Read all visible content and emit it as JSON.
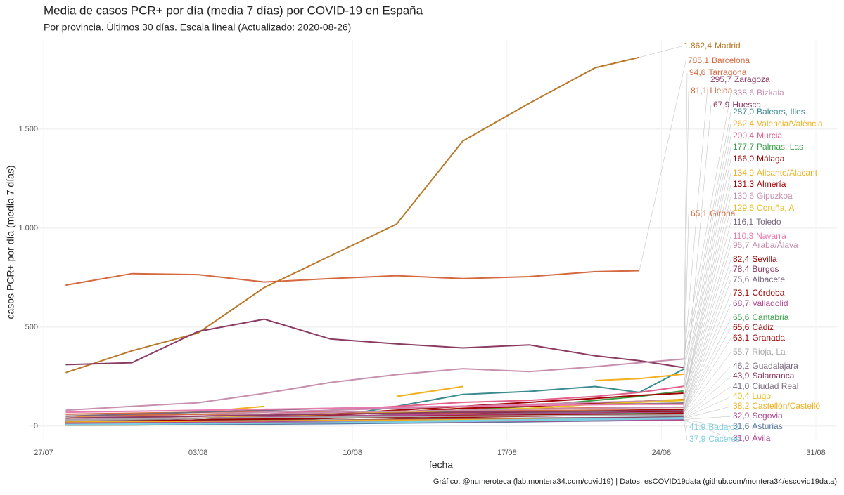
{
  "chart_data": {
    "type": "line",
    "title": "Media de casos PCR+ por día (media 7 días) por COVID-19 en España",
    "subtitle": "Por provincia. Últimos 30 días. Escala lineal  (Actualizado: 2020-08-26)",
    "x_label": "fecha",
    "y_label": "casos PCR+ por día (media 7 días)",
    "caption": "Gráfico: @numeroteca (lab.montera34.com/covid19) | Datos: esCOVID19data (github.com/montera34/escovid19data)",
    "x": [
      "28/07",
      "31/07",
      "03/08",
      "06/08",
      "09/08",
      "12/08",
      "15/08",
      "18/08",
      "21/08",
      "23/08",
      "25/08"
    ],
    "xlim": [
      "27/07",
      "31/08"
    ],
    "xticks": [
      "27/07",
      "03/08",
      "10/08",
      "17/08",
      "24/08",
      "31/08"
    ],
    "ylim": [
      -75,
      1950
    ],
    "yticks": [
      0,
      500,
      {
        "value": 1000,
        "label": "1.000"
      },
      {
        "value": 1500,
        "label": "1.500"
      }
    ],
    "grid": true,
    "series": [
      {
        "name": "Madrid",
        "color": "#b87a2a",
        "label": "1.862,4",
        "values": [
          270,
          380,
          470,
          700,
          860,
          1020,
          1440,
          1630,
          1810,
          1862.4,
          null
        ]
      },
      {
        "name": "Barcelona",
        "color": "#d4693f",
        "label": "785,1",
        "values": [
          712,
          770,
          765,
          728,
          745,
          760,
          745,
          755,
          780,
          785.1,
          null
        ]
      },
      {
        "name": "Tarragona",
        "color": "#d4693f",
        "label": "94,6",
        "values": [
          40,
          45,
          50,
          55,
          60,
          70,
          80,
          88,
          92,
          94,
          94.6
        ]
      },
      {
        "name": "Zaragoza",
        "color": "#8b3a62",
        "label": "295,7",
        "values": [
          310,
          320,
          478,
          540,
          440,
          415,
          395,
          410,
          355,
          330,
          295.7
        ]
      },
      {
        "name": "Bizkaia",
        "color": "#c78fae",
        "label": "338,6",
        "values": [
          80,
          100,
          118,
          165,
          220,
          260,
          290,
          275,
          300,
          320,
          338.6
        ]
      },
      {
        "name": "Lleida",
        "color": "#d4693f",
        "label": "81,1",
        "values": [
          60,
          65,
          70,
          75,
          72,
          70,
          75,
          78,
          80,
          81,
          81.1
        ]
      },
      {
        "name": "Huesca",
        "color": "#8b3a62",
        "label": "67,9",
        "values": [
          20,
          25,
          30,
          40,
          50,
          55,
          60,
          62,
          65,
          67,
          67.9
        ]
      },
      {
        "name": "Balears, Illes",
        "color": "#3a8a8f",
        "label": "287,0",
        "values": [
          30,
          28,
          25,
          35,
          45,
          100,
          160,
          175,
          200,
          170,
          287.0
        ]
      },
      {
        "name": "Valencia/València",
        "color": "#f2b01e",
        "label": "262,4",
        "values": [
          40,
          60,
          70,
          100,
          null,
          150,
          200,
          null,
          230,
          240,
          262.4
        ]
      },
      {
        "name": "Murcia",
        "color": "#e0608a",
        "label": "200,4",
        "values": [
          40,
          45,
          50,
          60,
          80,
          100,
          120,
          130,
          150,
          170,
          200.4
        ]
      },
      {
        "name": "Palmas, Las",
        "color": "#3aa04a",
        "label": "177,7",
        "values": [
          10,
          15,
          20,
          30,
          40,
          60,
          80,
          100,
          130,
          150,
          177.7
        ]
      },
      {
        "name": "Málaga",
        "color": "#a00000",
        "label": "166,0",
        "values": [
          15,
          20,
          30,
          45,
          60,
          80,
          100,
          120,
          140,
          155,
          166.0
        ]
      },
      {
        "name": "Alicante/Alacant",
        "color": "#f2b01e",
        "label": "134,9",
        "values": [
          30,
          35,
          40,
          50,
          60,
          70,
          90,
          100,
          115,
          125,
          134.9
        ]
      },
      {
        "name": "Almería",
        "color": "#a00000",
        "label": "131,3",
        "values": [
          20,
          25,
          30,
          40,
          55,
          70,
          90,
          100,
          115,
          125,
          131.3
        ]
      },
      {
        "name": "Gipuzkoa",
        "color": "#c78fae",
        "label": "130,6",
        "values": [
          40,
          50,
          60,
          70,
          80,
          90,
          100,
          110,
          120,
          125,
          130.6
        ]
      },
      {
        "name": "Coruña, A",
        "color": "#e8c020",
        "label": "129,6",
        "values": [
          30,
          35,
          40,
          50,
          60,
          70,
          80,
          90,
          110,
          120,
          129.6
        ]
      },
      {
        "name": "Girona",
        "color": "#d4693f",
        "label": "65,1",
        "values": [
          50,
          55,
          60,
          60,
          62,
          65,
          66,
          64,
          65,
          65,
          65.1
        ]
      },
      {
        "name": "Toledo",
        "color": "#7a6a80",
        "label": "116,1",
        "values": [
          50,
          60,
          70,
          80,
          90,
          95,
          100,
          105,
          110,
          112,
          116.1
        ]
      },
      {
        "name": "Navarra",
        "color": "#e87ab0",
        "label": "110,3",
        "values": [
          70,
          75,
          80,
          85,
          90,
          95,
          100,
          105,
          108,
          110,
          110.3
        ]
      },
      {
        "name": "Araba/Álava",
        "color": "#c78fae",
        "label": "95,7",
        "values": [
          30,
          40,
          50,
          60,
          70,
          75,
          80,
          85,
          90,
          93,
          95.7
        ]
      },
      {
        "name": "Sevilla",
        "color": "#a00000",
        "label": "82,4",
        "values": [
          20,
          25,
          30,
          40,
          50,
          55,
          60,
          70,
          75,
          80,
          82.4
        ]
      },
      {
        "name": "Burgos",
        "color": "#8b3a62",
        "label": "78,4",
        "values": [
          40,
          45,
          50,
          55,
          60,
          65,
          70,
          72,
          75,
          77,
          78.4
        ]
      },
      {
        "name": "Albacete",
        "color": "#7a6a80",
        "label": "75,6",
        "values": [
          20,
          30,
          40,
          45,
          50,
          55,
          60,
          65,
          70,
          73,
          75.6
        ]
      },
      {
        "name": "Córdoba",
        "color": "#a00000",
        "label": "73,1",
        "values": [
          10,
          15,
          20,
          30,
          40,
          50,
          55,
          60,
          65,
          70,
          73.1
        ]
      },
      {
        "name": "Valladolid",
        "color": "#b04a90",
        "label": "68,7",
        "values": [
          30,
          35,
          40,
          45,
          50,
          55,
          60,
          62,
          65,
          67,
          68.7
        ]
      },
      {
        "name": "Cantabria",
        "color": "#3aa04a",
        "label": "65,6",
        "values": [
          20,
          25,
          30,
          35,
          40,
          45,
          50,
          55,
          60,
          63,
          65.6
        ]
      },
      {
        "name": "Cádiz",
        "color": "#a00000",
        "label": "65,6",
        "values": [
          10,
          12,
          15,
          20,
          25,
          35,
          45,
          50,
          55,
          60,
          65.6
        ]
      },
      {
        "name": "Granada",
        "color": "#a00000",
        "label": "63,1",
        "values": [
          20,
          25,
          30,
          35,
          40,
          45,
          50,
          55,
          58,
          60,
          63.1
        ]
      },
      {
        "name": "Rioja, La",
        "color": "#aaaaaa",
        "label": "55,7",
        "values": [
          30,
          35,
          40,
          42,
          45,
          48,
          50,
          52,
          54,
          55,
          55.7
        ]
      },
      {
        "name": "Guadalajara",
        "color": "#7a6a80",
        "label": "46,2",
        "values": [
          20,
          22,
          25,
          28,
          30,
          33,
          36,
          40,
          42,
          44,
          46.2
        ]
      },
      {
        "name": "Salamanca",
        "color": "#8b3a62",
        "label": "43,9",
        "values": [
          15,
          18,
          20,
          24,
          28,
          32,
          35,
          38,
          40,
          42,
          43.9
        ]
      },
      {
        "name": "Ciudad Real",
        "color": "#7a6a80",
        "label": "41,0",
        "values": [
          10,
          12,
          15,
          18,
          22,
          26,
          30,
          34,
          37,
          39,
          41.0
        ]
      },
      {
        "name": "Lugo",
        "color": "#e8c020",
        "label": "40,4",
        "values": [
          5,
          6,
          8,
          10,
          14,
          18,
          24,
          30,
          34,
          38,
          40.4
        ]
      },
      {
        "name": "Castellón/Castelló",
        "color": "#f2b01e",
        "label": "38,2",
        "values": [
          20,
          22,
          24,
          26,
          28,
          30,
          32,
          34,
          35,
          37,
          38.2
        ]
      },
      {
        "name": "Segovia",
        "color": "#b04a90",
        "label": "32,9",
        "values": [
          15,
          16,
          18,
          20,
          22,
          24,
          26,
          28,
          30,
          31,
          32.9
        ]
      },
      {
        "name": "Asturias",
        "color": "#5a7aa0",
        "label": "31,6",
        "values": [
          5,
          6,
          8,
          10,
          12,
          15,
          18,
          22,
          26,
          29,
          31.6
        ]
      },
      {
        "name": "Badajoz",
        "color": "#7ad0e0",
        "label": "41,9",
        "values": [
          10,
          12,
          14,
          16,
          20,
          24,
          28,
          32,
          36,
          39,
          41.9
        ]
      },
      {
        "name": "Ávila",
        "color": "#b04a90",
        "label": "31,0",
        "values": [
          10,
          12,
          14,
          16,
          18,
          20,
          22,
          25,
          27,
          29,
          31.0
        ]
      },
      {
        "name": "Cáceres",
        "color": "#7ad0e0",
        "label": "37,9",
        "values": [
          8,
          10,
          12,
          14,
          16,
          20,
          24,
          28,
          32,
          35,
          37.9
        ]
      }
    ]
  }
}
